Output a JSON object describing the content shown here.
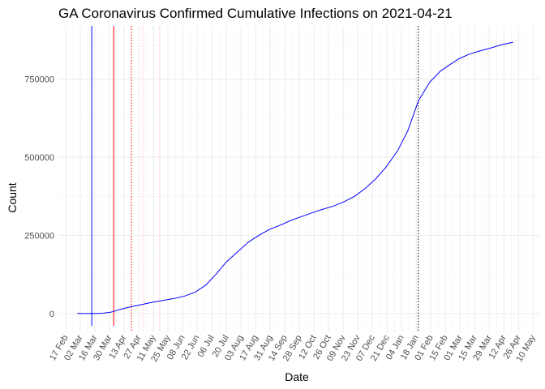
{
  "chart_data": {
    "type": "line",
    "title": "GA Coronavirus Confirmed Cumulative Infections on 2021-04-21",
    "xlabel": "Date",
    "ylabel": "Count",
    "x_range": [
      "2020-02-10",
      "2021-05-16"
    ],
    "ylim": [
      -60000,
      920000
    ],
    "yticks": [
      0,
      250000,
      500000,
      750000
    ],
    "ytick_labels": [
      "0",
      "250000",
      "500000",
      "750000"
    ],
    "xtick_dates": [
      "2020-02-17",
      "2020-03-02",
      "2020-03-16",
      "2020-03-30",
      "2020-04-13",
      "2020-04-27",
      "2020-05-11",
      "2020-05-25",
      "2020-06-08",
      "2020-06-22",
      "2020-07-06",
      "2020-07-20",
      "2020-08-03",
      "2020-08-17",
      "2020-08-31",
      "2020-09-14",
      "2020-09-28",
      "2020-10-12",
      "2020-10-26",
      "2020-11-09",
      "2020-11-23",
      "2020-12-07",
      "2020-12-21",
      "2021-01-04",
      "2021-01-18",
      "2021-02-01",
      "2021-02-15",
      "2021-03-01",
      "2021-03-15",
      "2021-03-29",
      "2021-04-12",
      "2021-04-26",
      "2021-05-10"
    ],
    "xtick_labels": [
      "17 Feb",
      "02 Mar",
      "16 Mar",
      "30 Mar",
      "13 Apr",
      "27 Apr",
      "11 May",
      "25 May",
      "08 Jun",
      "22 Jun",
      "06 Jul",
      "20 Jul",
      "03 Aug",
      "17 Aug",
      "31 Aug",
      "14 Sep",
      "28 Sep",
      "12 Oct",
      "26 Oct",
      "09 Nov",
      "23 Nov",
      "07 Dec",
      "21 Dec",
      "04 Jan",
      "18 Jan",
      "01 Feb",
      "15 Feb",
      "01 Mar",
      "15 Mar",
      "29 Mar",
      "12 Apr",
      "26 Apr",
      "10 May"
    ],
    "grid": true,
    "series": [
      {
        "color": "#0000ff",
        "x": [
          "2020-02-28",
          "2020-03-05",
          "2020-03-10",
          "2020-03-15",
          "2020-03-20",
          "2020-03-25",
          "2020-03-31",
          "2020-04-10",
          "2020-04-20",
          "2020-04-30",
          "2020-05-10",
          "2020-05-20",
          "2020-05-31",
          "2020-06-10",
          "2020-06-20",
          "2020-06-30",
          "2020-07-10",
          "2020-07-20",
          "2020-07-31",
          "2020-08-10",
          "2020-08-20",
          "2020-08-31",
          "2020-09-10",
          "2020-09-20",
          "2020-09-30",
          "2020-10-10",
          "2020-10-20",
          "2020-10-31",
          "2020-11-10",
          "2020-11-20",
          "2020-11-30",
          "2020-12-10",
          "2020-12-20",
          "2020-12-31",
          "2021-01-10",
          "2021-01-20",
          "2021-01-31",
          "2021-02-10",
          "2021-02-20",
          "2021-02-28",
          "2021-03-10",
          "2021-03-20",
          "2021-03-31",
          "2021-04-10",
          "2021-04-21"
        ],
        "y": [
          0,
          0,
          0,
          100,
          500,
          1500,
          4000,
          14000,
          22000,
          29000,
          36000,
          42000,
          48000,
          56000,
          68000,
          90000,
          125000,
          165000,
          198000,
          228000,
          250000,
          270000,
          283000,
          298000,
          310000,
          322000,
          333000,
          344000,
          358000,
          375000,
          400000,
          430000,
          468000,
          520000,
          585000,
          680000,
          740000,
          775000,
          798000,
          815000,
          830000,
          840000,
          850000,
          860000,
          868000
        ]
      }
    ],
    "vlines": [
      {
        "x": "2020-03-13",
        "color": "#0000ff",
        "style": "solid",
        "y_from": -40000
      },
      {
        "x": "2020-04-03",
        "color": "#ff0000",
        "style": "solid",
        "y_from": -40000
      },
      {
        "x": "2020-04-20",
        "color": "#ff0000",
        "style": "dotted"
      },
      {
        "x": "2020-05-01",
        "color": "#ffb6c1",
        "style": "dotted"
      },
      {
        "x": "2020-05-17",
        "color": "#ffb6c1",
        "style": "dotted"
      },
      {
        "x": "2021-01-20",
        "color": "#000000",
        "style": "dotted"
      }
    ]
  }
}
